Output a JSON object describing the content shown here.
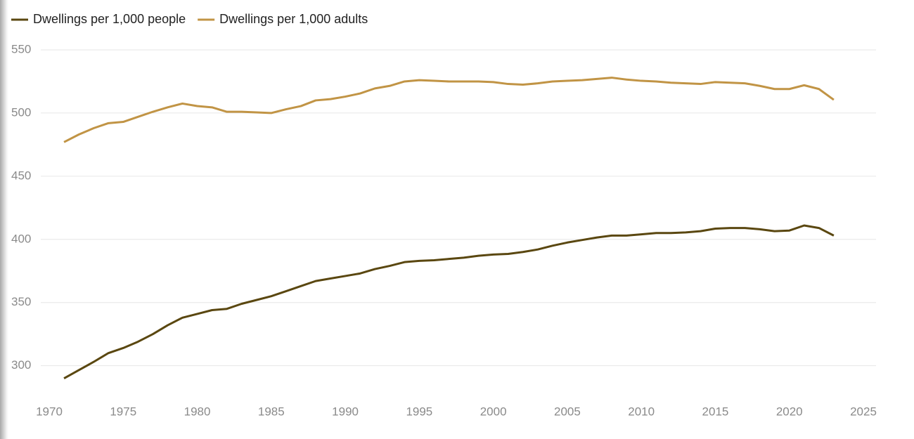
{
  "chart_data": {
    "type": "line",
    "x": [
      1971,
      1972,
      1973,
      1974,
      1975,
      1976,
      1977,
      1978,
      1979,
      1980,
      1981,
      1982,
      1983,
      1984,
      1985,
      1986,
      1987,
      1988,
      1989,
      1990,
      1991,
      1992,
      1993,
      1994,
      1995,
      1996,
      1997,
      1998,
      1999,
      2000,
      2001,
      2002,
      2003,
      2004,
      2005,
      2006,
      2007,
      2008,
      2009,
      2010,
      2011,
      2012,
      2013,
      2014,
      2015,
      2016,
      2017,
      2018,
      2019,
      2020,
      2021,
      2022,
      2023
    ],
    "series": [
      {
        "name": "Dwellings per 1,000 people",
        "color": "#5a4710",
        "values": [
          290,
          296.5,
          303,
          310,
          314,
          319,
          325,
          332,
          338,
          341,
          344,
          345,
          349,
          352,
          355,
          359,
          363,
          367,
          369,
          371,
          373,
          376.5,
          379,
          382,
          383,
          383.5,
          384.5,
          385.5,
          387,
          388,
          388.5,
          390,
          392,
          395,
          397.5,
          399.5,
          401.5,
          403,
          403,
          404,
          405,
          405,
          405.5,
          406.5,
          408.5,
          409,
          409,
          408,
          406.5,
          407,
          411,
          409,
          403
        ]
      },
      {
        "name": "Dwellings per 1,000 adults",
        "color": "#c19445",
        "values": [
          477,
          483,
          488,
          492,
          493,
          497,
          501,
          504.5,
          507.5,
          505.5,
          504.5,
          501,
          501,
          500.5,
          500,
          503,
          505.5,
          510,
          511,
          513,
          515.5,
          519.5,
          521.5,
          525,
          526,
          525.5,
          525,
          525,
          525,
          524.5,
          523,
          522.5,
          523.5,
          525,
          525.5,
          526,
          527,
          528,
          526.5,
          525.5,
          525,
          524,
          523.5,
          523,
          524.5,
          524,
          523.5,
          521.5,
          519,
          519,
          522,
          519,
          510.5
        ]
      }
    ],
    "xlim": [
      1970,
      2025
    ],
    "xticks": [
      1970,
      1975,
      1980,
      1985,
      1990,
      1995,
      2000,
      2005,
      2010,
      2015,
      2020,
      2025
    ],
    "ylim": [
      272,
      550
    ],
    "yticks": [
      300,
      350,
      400,
      450,
      500,
      550
    ],
    "grid": true,
    "legend": "top-left"
  }
}
